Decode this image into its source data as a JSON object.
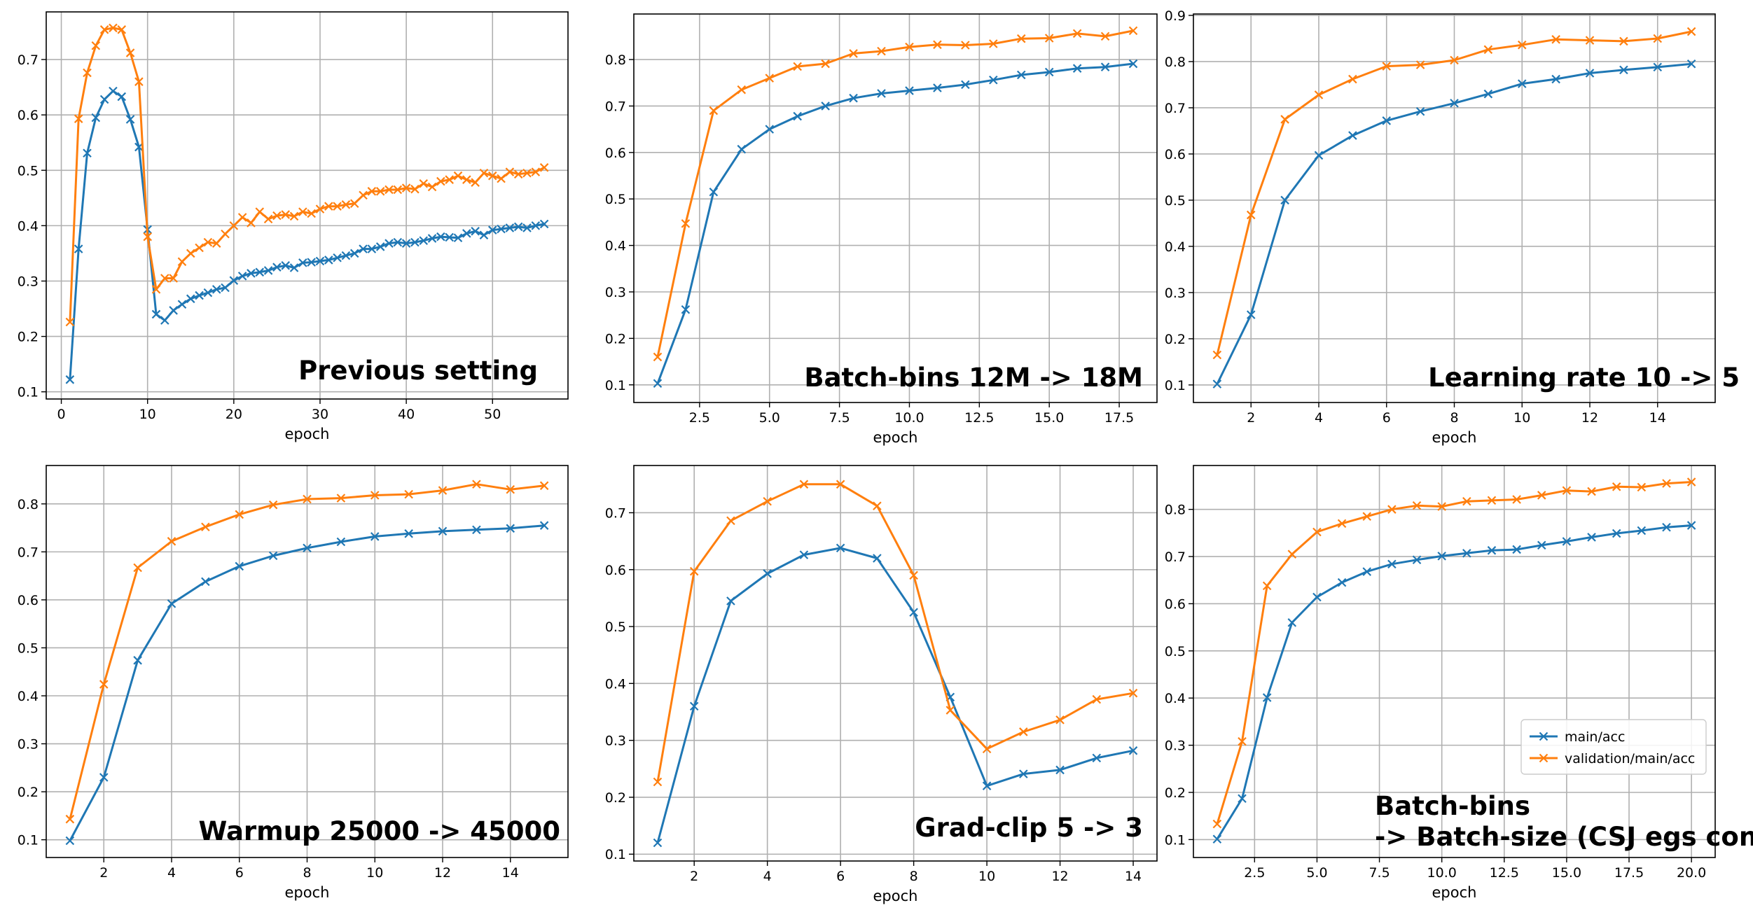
{
  "figure": {
    "legend": [
      "main/acc",
      "validation/main/acc"
    ]
  },
  "colors": {
    "main": "#1f77b4",
    "validation": "#ff7f0e",
    "grid": "#b0b0b0"
  },
  "chart_data": [
    {
      "type": "line",
      "annotation": [
        "Previous setting"
      ],
      "xlabel": "epoch",
      "xlim": [
        -1.75,
        58.75
      ],
      "ylim": [
        0.087,
        0.786
      ],
      "xticks": [
        0,
        10,
        20,
        30,
        40,
        50
      ],
      "xtick_labels": [
        "0",
        "10",
        "20",
        "30",
        "40",
        "50"
      ],
      "yticks": [
        0.1,
        0.2,
        0.3,
        0.4,
        0.5,
        0.6,
        0.7
      ],
      "ytick_labels": [
        "0.1",
        "0.2",
        "0.3",
        "0.4",
        "0.5",
        "0.6",
        "0.7"
      ],
      "x": [
        1,
        2,
        3,
        4,
        5,
        6,
        7,
        8,
        9,
        10,
        11,
        12,
        13,
        14,
        15,
        16,
        17,
        18,
        19,
        20,
        21,
        22,
        23,
        24,
        25,
        26,
        27,
        28,
        29,
        30,
        31,
        32,
        33,
        34,
        35,
        36,
        37,
        38,
        39,
        40,
        41,
        42,
        43,
        44,
        45,
        46,
        47,
        48,
        49,
        50,
        51,
        52,
        53,
        54,
        55,
        56
      ],
      "series": [
        {
          "name": "main/acc",
          "values": [
            0.122,
            0.358,
            0.531,
            0.595,
            0.628,
            0.643,
            0.633,
            0.592,
            0.542,
            0.393,
            0.24,
            0.229,
            0.247,
            0.258,
            0.268,
            0.274,
            0.279,
            0.285,
            0.288,
            0.301,
            0.309,
            0.314,
            0.316,
            0.319,
            0.325,
            0.328,
            0.324,
            0.333,
            0.334,
            0.336,
            0.338,
            0.342,
            0.346,
            0.35,
            0.358,
            0.358,
            0.362,
            0.368,
            0.37,
            0.368,
            0.37,
            0.373,
            0.377,
            0.38,
            0.379,
            0.378,
            0.386,
            0.39,
            0.383,
            0.392,
            0.394,
            0.396,
            0.398,
            0.396,
            0.4,
            0.403
          ]
        },
        {
          "name": "validation/main/acc",
          "values": [
            0.226,
            0.593,
            0.676,
            0.725,
            0.754,
            0.757,
            0.754,
            0.712,
            0.66,
            0.38,
            0.285,
            0.305,
            0.305,
            0.335,
            0.35,
            0.36,
            0.37,
            0.368,
            0.385,
            0.4,
            0.415,
            0.405,
            0.425,
            0.412,
            0.418,
            0.42,
            0.417,
            0.425,
            0.422,
            0.43,
            0.435,
            0.435,
            0.438,
            0.44,
            0.455,
            0.462,
            0.462,
            0.465,
            0.465,
            0.468,
            0.466,
            0.476,
            0.47,
            0.48,
            0.483,
            0.49,
            0.483,
            0.478,
            0.495,
            0.49,
            0.485,
            0.497,
            0.493,
            0.495,
            0.497,
            0.505
          ]
        }
      ]
    },
    {
      "type": "line",
      "annotation": [
        "Batch-bins 12M -> 18M"
      ],
      "xlabel": "epoch",
      "xlim": [
        0.15,
        18.85
      ],
      "ylim": [
        0.062,
        0.898
      ],
      "xticks": [
        2.5,
        5.0,
        7.5,
        10.0,
        12.5,
        15.0,
        17.5
      ],
      "xtick_labels": [
        "2.5",
        "5.0",
        "7.5",
        "10.0",
        "12.5",
        "15.0",
        "17.5"
      ],
      "yticks": [
        0.1,
        0.2,
        0.3,
        0.4,
        0.5,
        0.6,
        0.7,
        0.8
      ],
      "ytick_labels": [
        "0.1",
        "0.2",
        "0.3",
        "0.4",
        "0.5",
        "0.6",
        "0.7",
        "0.8"
      ],
      "x": [
        1,
        2,
        3,
        4,
        5,
        6,
        7,
        8,
        9,
        10,
        11,
        12,
        13,
        14,
        15,
        16,
        17,
        18
      ],
      "series": [
        {
          "name": "main/acc",
          "values": [
            0.103,
            0.262,
            0.515,
            0.607,
            0.65,
            0.678,
            0.7,
            0.717,
            0.727,
            0.733,
            0.739,
            0.746,
            0.756,
            0.767,
            0.773,
            0.781,
            0.784,
            0.791
          ]
        },
        {
          "name": "validation/main/acc",
          "values": [
            0.16,
            0.447,
            0.69,
            0.735,
            0.76,
            0.785,
            0.791,
            0.813,
            0.818,
            0.827,
            0.832,
            0.831,
            0.834,
            0.845,
            0.846,
            0.856,
            0.85,
            0.862
          ]
        }
      ]
    },
    {
      "type": "line",
      "annotation": [
        "Learning rate 10 -> 5"
      ],
      "xlabel": "epoch",
      "xlim": [
        0.3,
        15.7
      ],
      "ylim": [
        0.062,
        0.903
      ],
      "xticks": [
        2,
        4,
        6,
        8,
        10,
        12,
        14
      ],
      "xtick_labels": [
        "2",
        "4",
        "6",
        "8",
        "10",
        "12",
        "14"
      ],
      "yticks": [
        0.1,
        0.2,
        0.3,
        0.4,
        0.5,
        0.6,
        0.7,
        0.8,
        0.9
      ],
      "ytick_labels": [
        "0.1",
        "0.2",
        "0.3",
        "0.4",
        "0.5",
        "0.6",
        "0.7",
        "0.8",
        "0.9"
      ],
      "x": [
        1,
        2,
        3,
        4,
        5,
        6,
        7,
        8,
        9,
        10,
        11,
        12,
        13,
        14,
        15
      ],
      "series": [
        {
          "name": "main/acc",
          "values": [
            0.102,
            0.252,
            0.5,
            0.597,
            0.64,
            0.672,
            0.692,
            0.71,
            0.73,
            0.752,
            0.762,
            0.775,
            0.782,
            0.788,
            0.795
          ]
        },
        {
          "name": "validation/main/acc",
          "values": [
            0.165,
            0.468,
            0.675,
            0.728,
            0.762,
            0.79,
            0.793,
            0.803,
            0.826,
            0.836,
            0.848,
            0.846,
            0.844,
            0.85,
            0.865
          ]
        }
      ]
    },
    {
      "type": "line",
      "annotation": [
        "Warmup 25000 -> 45000"
      ],
      "xlabel": "epoch",
      "xlim": [
        0.3,
        15.7
      ],
      "ylim": [
        0.063,
        0.88
      ],
      "xticks": [
        2,
        4,
        6,
        8,
        10,
        12,
        14
      ],
      "xtick_labels": [
        "2",
        "4",
        "6",
        "8",
        "10",
        "12",
        "14"
      ],
      "yticks": [
        0.1,
        0.2,
        0.3,
        0.4,
        0.5,
        0.6,
        0.7,
        0.8
      ],
      "ytick_labels": [
        "0.1",
        "0.2",
        "0.3",
        "0.4",
        "0.5",
        "0.6",
        "0.7",
        "0.8"
      ],
      "x": [
        1,
        2,
        3,
        4,
        5,
        6,
        7,
        8,
        9,
        10,
        11,
        12,
        13,
        14,
        15
      ],
      "series": [
        {
          "name": "main/acc",
          "values": [
            0.098,
            0.23,
            0.474,
            0.592,
            0.638,
            0.67,
            0.692,
            0.708,
            0.721,
            0.732,
            0.738,
            0.743,
            0.746,
            0.749,
            0.755
          ]
        },
        {
          "name": "validation/main/acc",
          "values": [
            0.143,
            0.424,
            0.667,
            0.722,
            0.752,
            0.778,
            0.798,
            0.81,
            0.812,
            0.818,
            0.82,
            0.828,
            0.841,
            0.83,
            0.838
          ]
        }
      ]
    },
    {
      "type": "line",
      "annotation": [
        "Grad-clip 5 -> 3"
      ],
      "xlabel": "epoch",
      "xlim": [
        0.35,
        14.65
      ],
      "ylim": [
        0.088,
        0.783
      ],
      "xticks": [
        2,
        4,
        6,
        8,
        10,
        12,
        14
      ],
      "xtick_labels": [
        "2",
        "4",
        "6",
        "8",
        "10",
        "12",
        "14"
      ],
      "yticks": [
        0.1,
        0.2,
        0.3,
        0.4,
        0.5,
        0.6,
        0.7
      ],
      "ytick_labels": [
        "0.1",
        "0.2",
        "0.3",
        "0.4",
        "0.5",
        "0.6",
        "0.7"
      ],
      "x": [
        1,
        2,
        3,
        4,
        5,
        6,
        7,
        8,
        9,
        10,
        11,
        12,
        13,
        14
      ],
      "series": [
        {
          "name": "main/acc",
          "values": [
            0.12,
            0.36,
            0.545,
            0.593,
            0.626,
            0.638,
            0.62,
            0.525,
            0.376,
            0.22,
            0.241,
            0.248,
            0.269,
            0.282
          ]
        },
        {
          "name": "validation/main/acc",
          "values": [
            0.227,
            0.597,
            0.686,
            0.72,
            0.75,
            0.75,
            0.712,
            0.59,
            0.353,
            0.285,
            0.315,
            0.336,
            0.372,
            0.383
          ]
        }
      ]
    },
    {
      "type": "line",
      "annotation": [
        "Batch-bins",
        "-> Batch-size (CSJ egs conf)"
      ],
      "xlabel": "epoch",
      "xlim": [
        0.05,
        20.95
      ],
      "ylim": [
        0.062,
        0.893
      ],
      "xticks": [
        2.5,
        5.0,
        7.5,
        10.0,
        12.5,
        15.0,
        17.5,
        20.0
      ],
      "xtick_labels": [
        "2.5",
        "5.0",
        "7.5",
        "10.0",
        "12.5",
        "15.0",
        "17.5",
        "20.0"
      ],
      "yticks": [
        0.1,
        0.2,
        0.3,
        0.4,
        0.5,
        0.6,
        0.7,
        0.8
      ],
      "ytick_labels": [
        "0.1",
        "0.2",
        "0.3",
        "0.4",
        "0.5",
        "0.6",
        "0.7",
        "0.8"
      ],
      "legend_position": "lower-right",
      "x": [
        1,
        2,
        3,
        4,
        5,
        6,
        7,
        8,
        9,
        10,
        11,
        12,
        13,
        14,
        15,
        16,
        17,
        18,
        19,
        20
      ],
      "series": [
        {
          "name": "main/acc",
          "values": [
            0.101,
            0.187,
            0.401,
            0.56,
            0.614,
            0.645,
            0.668,
            0.684,
            0.693,
            0.701,
            0.707,
            0.713,
            0.715,
            0.724,
            0.732,
            0.741,
            0.749,
            0.755,
            0.762,
            0.766
          ]
        },
        {
          "name": "validation/main/acc",
          "values": [
            0.133,
            0.308,
            0.638,
            0.705,
            0.752,
            0.77,
            0.785,
            0.8,
            0.808,
            0.806,
            0.817,
            0.819,
            0.821,
            0.83,
            0.84,
            0.838,
            0.848,
            0.847,
            0.855,
            0.858
          ]
        }
      ]
    }
  ]
}
